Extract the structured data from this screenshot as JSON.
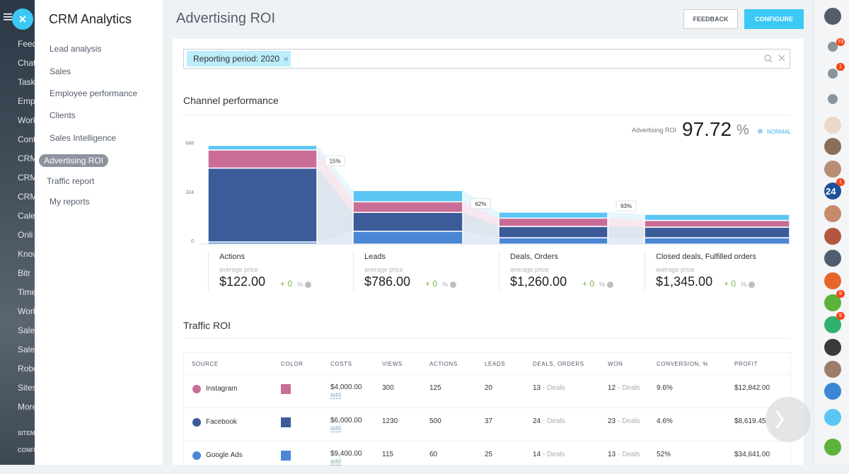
{
  "nav": {
    "items": [
      "Feed",
      "Chat",
      "Task",
      "Emp",
      "Work",
      "Cont",
      "CRM",
      "CRM",
      "CRM",
      "Cale",
      "Onli",
      "Know",
      "Bitr",
      "Time",
      "Work",
      "Sale",
      "Sale",
      "Robo",
      "Sites",
      "More"
    ],
    "sections": [
      "SITEM",
      "CONFI"
    ]
  },
  "sidebar": {
    "title": "CRM Analytics",
    "items": [
      "Lead analysis",
      "Sales",
      "Employee performance",
      "Clients",
      "Sales Intelligence",
      "Advertising ROI",
      "Traffic report",
      "My reports"
    ]
  },
  "header": {
    "title": "Advertising ROI",
    "feedback": "FEEDBACK",
    "configure": "CONFIGURE"
  },
  "filter": {
    "chip": "Reporting period: 2020"
  },
  "channel": {
    "title": "Channel performance",
    "roi_label": "Advertising ROI",
    "roi_value": "97.72",
    "roi_unit": "%",
    "status": "NORMAL",
    "chart": {
      "type": "bar",
      "categories": [
        "Actions",
        "Leads",
        "Deals, Orders",
        "Closed deals, Fulfilled orders"
      ],
      "ylim": [
        0,
        680
      ],
      "yticks": [
        0,
        324,
        648
      ],
      "series": [
        {
          "color": "#4a86d4",
          "values": [
            14,
            85,
            42,
            42
          ]
        },
        {
          "color": "#3b5b99",
          "values": [
            490,
            125,
            75,
            70
          ]
        },
        {
          "color": "#c96d96",
          "values": [
            120,
            70,
            55,
            45
          ]
        },
        {
          "color": "#5bc6f3",
          "values": [
            30,
            75,
            40,
            40
          ]
        }
      ],
      "conversions": [
        "15%",
        "62%",
        "93%"
      ]
    },
    "stats": [
      {
        "price_label": "average price",
        "price": "$122.00",
        "change": "+ 0",
        "unit": "%"
      },
      {
        "price_label": "average price",
        "price": "$786.00",
        "change": "+ 0",
        "unit": "%"
      },
      {
        "price_label": "average price",
        "price": "$1,260.00",
        "change": "+ 0",
        "unit": "%"
      },
      {
        "price_label": "average price",
        "price": "$1,345.00",
        "change": "+ 0",
        "unit": "%"
      }
    ]
  },
  "traffic": {
    "title": "Traffic ROI",
    "columns": [
      "SOURCE",
      "COLOR",
      "COSTS",
      "VIEWS",
      "ACTIONS",
      "LEADS",
      "DEALS, ORDERS",
      "WON",
      "CONVERSION, %",
      "PROFIT"
    ],
    "rows": [
      {
        "source": "Instagram",
        "color": "#c96d96",
        "costs": "$4,000.00",
        "add": "add",
        "views": 300,
        "actions": 125,
        "leads": 20,
        "deals": 13,
        "deals_unit": "- Deals",
        "won": 12,
        "won_unit": "- Deals",
        "conversion": "9.6%",
        "profit": "$12,842.00"
      },
      {
        "source": "Facebook",
        "color": "#3b5b99",
        "costs": "$6,000.00",
        "add": "add",
        "views": 1230,
        "actions": 500,
        "leads": 37,
        "deals": 24,
        "deals_unit": "- Deals",
        "won": 23,
        "won_unit": "- Deals",
        "conversion": "4.6%",
        "profit": "$8,619.45"
      },
      {
        "source": "Google Ads",
        "color": "#4a86d4",
        "costs": "$9,400.00",
        "add": "add",
        "views": 115,
        "actions": 60,
        "leads": 25,
        "deals": 14,
        "deals_unit": "- Deals",
        "won": 13,
        "won_unit": "- Deals",
        "conversion": "52%",
        "profit": "$34,641.00"
      }
    ]
  },
  "rightbar": {
    "badges": [
      73,
      1,
      1,
      9,
      5
    ],
    "tile": 24
  }
}
